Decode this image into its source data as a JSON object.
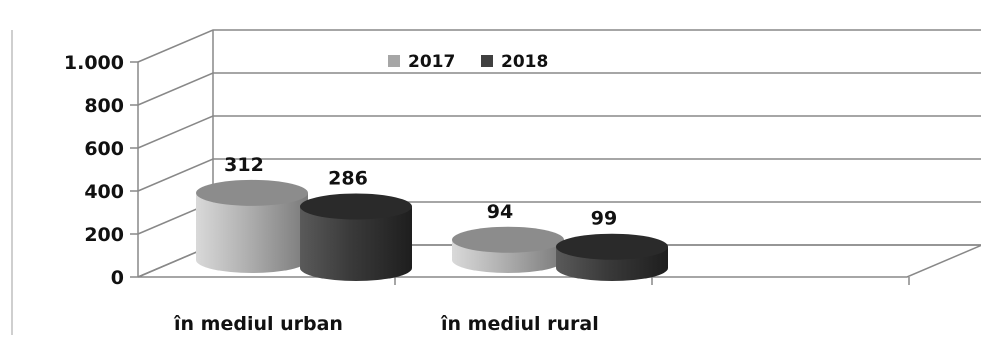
{
  "chart_data": {
    "type": "bar",
    "categories": [
      "în mediul urban",
      "în mediul rural"
    ],
    "series": [
      {
        "name": "2017",
        "values": [
          312,
          94
        ],
        "labels": [
          "312",
          "94"
        ],
        "color": "#a6a6a6"
      },
      {
        "name": "2018",
        "values": [
          286,
          99
        ],
        "labels": [
          "286",
          "99"
        ],
        "color": "#404040"
      }
    ],
    "ylim": [
      0,
      1000
    ],
    "yticks": [
      0,
      200,
      400,
      600,
      800,
      1000
    ],
    "ytick_labels": [
      "0",
      "200",
      "400",
      "600",
      "800",
      "1.000"
    ],
    "grid": true,
    "legend": "top-center",
    "style": "3d-cylinder"
  }
}
